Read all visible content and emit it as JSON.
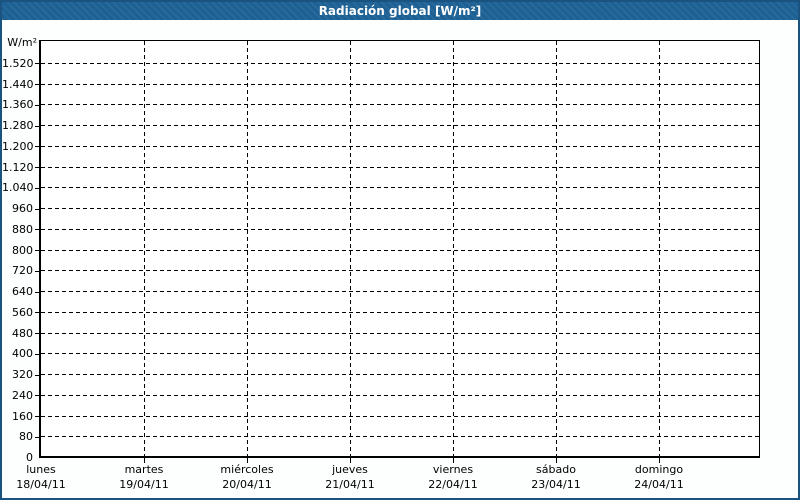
{
  "window": {
    "title": "Radiación global [W/m²]"
  },
  "colors": {
    "header_bg": "#1C6094",
    "window_border": "#1A5380",
    "page_bg": "#FDFEFE",
    "plot_bg": "#FFFFFF",
    "axis_and_grid": "#000000",
    "title_text": "#FFFFFF",
    "label_text": "#000000"
  },
  "chart_data": {
    "type": "line",
    "title": "Radiación global [W/m²]",
    "ylabel": "W/m²",
    "ylim": [
      0,
      1600
    ],
    "y_tick_step": 80,
    "grid": true,
    "grid_style": "dashed",
    "legend": "none",
    "y_ticks": [
      {
        "value": 1520,
        "label": "1.520"
      },
      {
        "value": 1440,
        "label": "1.440"
      },
      {
        "value": 1360,
        "label": "1.360"
      },
      {
        "value": 1280,
        "label": "1.280"
      },
      {
        "value": 1200,
        "label": "1.200"
      },
      {
        "value": 1120,
        "label": "1.120"
      },
      {
        "value": 1040,
        "label": "1.040"
      },
      {
        "value": 960,
        "label": "960"
      },
      {
        "value": 880,
        "label": "880"
      },
      {
        "value": 800,
        "label": "800"
      },
      {
        "value": 720,
        "label": "720"
      },
      {
        "value": 640,
        "label": "640"
      },
      {
        "value": 560,
        "label": "560"
      },
      {
        "value": 480,
        "label": "480"
      },
      {
        "value": 400,
        "label": "400"
      },
      {
        "value": 320,
        "label": "320"
      },
      {
        "value": 240,
        "label": "240"
      },
      {
        "value": 160,
        "label": "160"
      },
      {
        "value": 80,
        "label": "80"
      },
      {
        "value": 0,
        "label": "0"
      }
    ],
    "x_days": [
      {
        "name": "lunes",
        "date": "18/04/11"
      },
      {
        "name": "martes",
        "date": "19/04/11"
      },
      {
        "name": "miércoles",
        "date": "20/04/11"
      },
      {
        "name": "jueves",
        "date": "21/04/11"
      },
      {
        "name": "viernes",
        "date": "22/04/11"
      },
      {
        "name": "sábado",
        "date": "23/04/11"
      },
      {
        "name": "domingo",
        "date": "24/04/11"
      }
    ],
    "series": []
  }
}
